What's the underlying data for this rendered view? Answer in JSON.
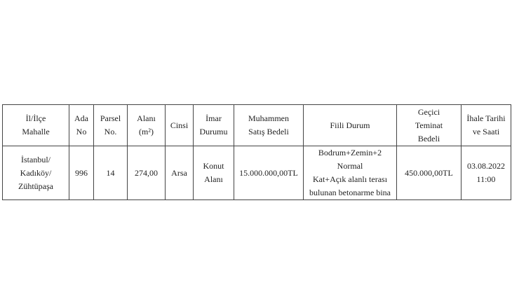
{
  "table": {
    "headers": [
      [
        "İl/İlçe",
        "Mahalle"
      ],
      [
        "Ada",
        "No"
      ],
      [
        "Parsel",
        "No."
      ],
      [
        "Alanı",
        "(m²)"
      ],
      [
        "Cinsi"
      ],
      [
        "İmar",
        "Durumu"
      ],
      [
        "Muhammen",
        "Satış Bedeli"
      ],
      [
        "Fiili Durum"
      ],
      [
        "Geçici",
        "Teminat",
        "Bedeli"
      ],
      [
        "İhale Tarihi",
        "ve Saati"
      ]
    ],
    "rows": [
      [
        [
          "İstanbul/",
          "Kadıköy/",
          "Zühtüpaşa"
        ],
        [
          "996"
        ],
        [
          "14"
        ],
        [
          "274,00"
        ],
        [
          "Arsa"
        ],
        [
          "Konut",
          "Alanı"
        ],
        [
          "15.000.000,00TL"
        ],
        [
          "Bodrum+Zemin+2 Normal",
          "Kat+Açık alanlı terası",
          "bulunan betonarme bina"
        ],
        [
          "450.000,00TL"
        ],
        [
          "03.08.2022",
          "11:00"
        ]
      ]
    ]
  }
}
